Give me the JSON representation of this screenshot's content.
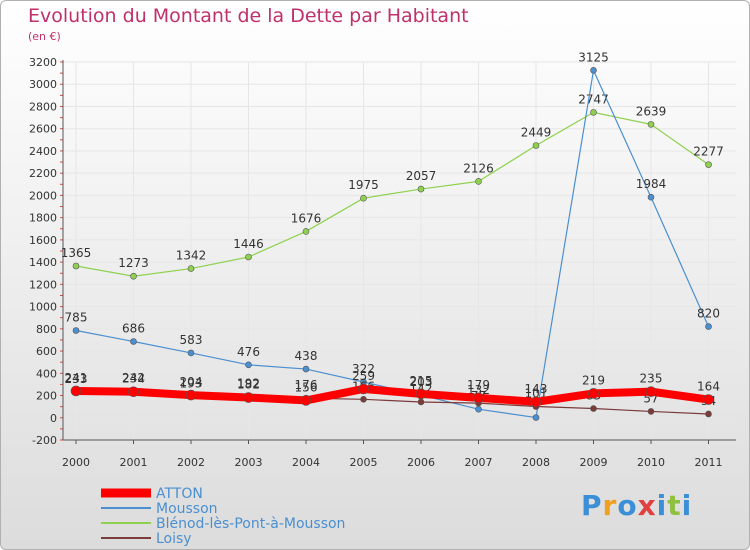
{
  "title": "Evolution du Montant de la Dette par Habitant",
  "subtitle": "(en €)",
  "logo": "Proxiti",
  "chart_data": {
    "type": "line",
    "title": "Evolution du Montant de la Dette par Habitant",
    "ylabel": "(en €)",
    "xlabel": "",
    "ylim": [
      -200,
      3200
    ],
    "yticks": [
      -200,
      0,
      200,
      400,
      600,
      800,
      1000,
      1200,
      1400,
      1600,
      1800,
      2000,
      2200,
      2400,
      2600,
      2800,
      3000,
      3200
    ],
    "categories": [
      "2000",
      "2001",
      "2002",
      "2003",
      "2004",
      "2005",
      "2006",
      "2007",
      "2008",
      "2009",
      "2010",
      "2011"
    ],
    "legend_position": "bottom-left",
    "series": [
      {
        "name": "ATTON",
        "color": "#ff0000",
        "values": [
          241,
          234,
          204,
          182,
          156,
          259,
          215,
          179,
          143,
          219,
          235,
          164
        ]
      },
      {
        "name": "Mousson",
        "color": "#4b8fd0",
        "values": [
          785,
          686,
          583,
          476,
          438,
          322,
          203,
          77,
          2,
          3125,
          1984,
          820
        ]
      },
      {
        "name": "Blénod-lès-Pont-à-Mousson",
        "color": "#8fd14f",
        "values": [
          1365,
          1273,
          1342,
          1446,
          1676,
          1975,
          2057,
          2126,
          2449,
          2747,
          2639,
          2277
        ]
      },
      {
        "name": "Loisy",
        "color": "#7a3b3b",
        "values": [
          233,
          242,
          193,
          192,
          176,
          166,
          142,
          132,
          101,
          83,
          57,
          34
        ]
      }
    ]
  }
}
